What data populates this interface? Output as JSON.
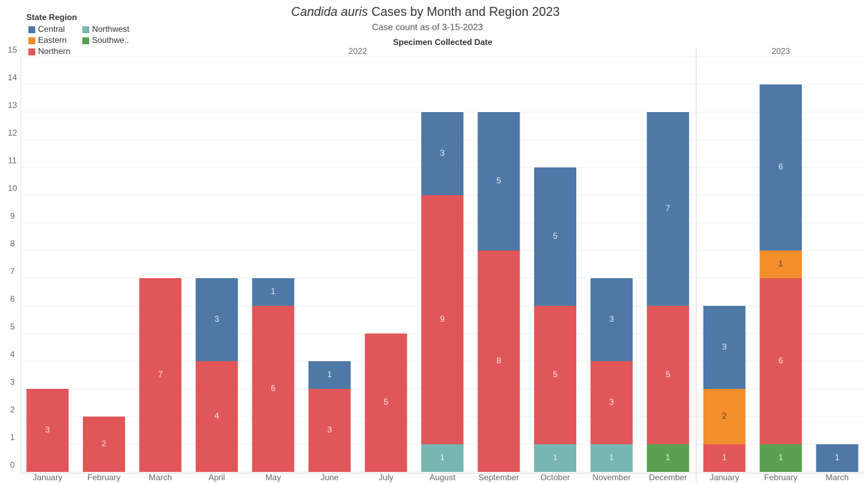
{
  "chart_data": {
    "type": "stacked_bar",
    "title_parts": [
      "Candida auris",
      "Cases by Month and Region 2023"
    ],
    "subtitle": "Case count as of 3-15-2023",
    "x_label": "Specimen Collected Date",
    "legend_title": "State Region",
    "categories": [
      "January",
      "February",
      "March",
      "April",
      "May",
      "June",
      "July",
      "August",
      "September",
      "October",
      "November",
      "December",
      "January",
      "February",
      "March"
    ],
    "category_years": [
      "2022",
      "2022",
      "2022",
      "2022",
      "2022",
      "2022",
      "2022",
      "2022",
      "2022",
      "2022",
      "2022",
      "2022",
      "2023",
      "2023",
      "2023"
    ],
    "series": [
      {
        "name": "Central",
        "color": "#4e79a7",
        "values": [
          null,
          null,
          null,
          3,
          1,
          1,
          null,
          3,
          5,
          5,
          3,
          7,
          3,
          6,
          1
        ]
      },
      {
        "name": "Eastern",
        "color": "#f28e2b",
        "values": [
          null,
          null,
          null,
          null,
          null,
          null,
          null,
          null,
          null,
          null,
          null,
          null,
          2,
          1,
          null
        ]
      },
      {
        "name": "Northern",
        "color": "#e15759",
        "values": [
          3,
          2,
          7,
          4,
          6,
          3,
          5,
          9,
          8,
          5,
          3,
          5,
          1,
          6,
          null
        ]
      },
      {
        "name": "Northwest",
        "color": "#76b7b2",
        "values": [
          null,
          null,
          null,
          null,
          null,
          null,
          null,
          1,
          null,
          1,
          1,
          null,
          null,
          null,
          null
        ]
      },
      {
        "name": "Southwe..",
        "color": "#59a14f",
        "values": [
          null,
          null,
          null,
          null,
          null,
          null,
          null,
          null,
          null,
          null,
          null,
          1,
          null,
          1,
          null
        ]
      }
    ],
    "ylim": [
      0,
      15
    ],
    "yticks": [
      0,
      1,
      2,
      3,
      4,
      5,
      6,
      7,
      8,
      9,
      10,
      11,
      12,
      13,
      14,
      15
    ],
    "grid": true
  }
}
